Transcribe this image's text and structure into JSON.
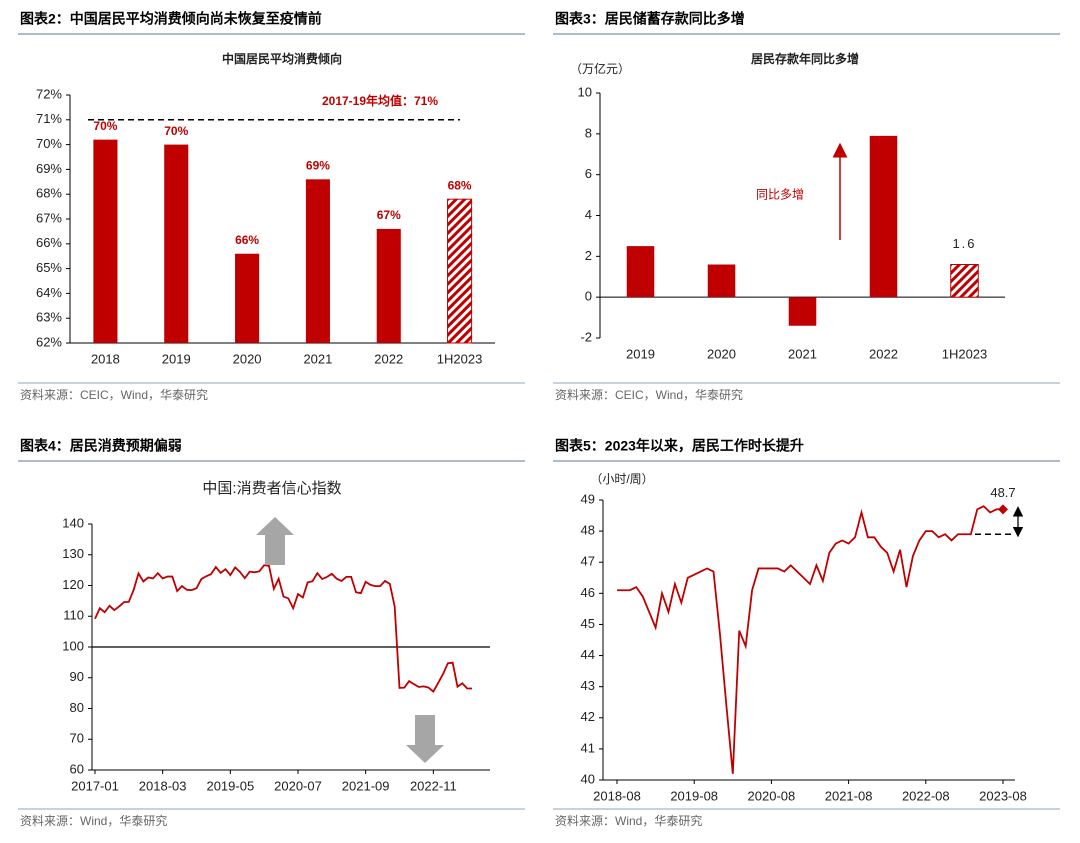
{
  "chart_data": [
    {
      "type": "bar",
      "figure_title": "图表2：中国居民平均消费倾向尚未恢复至疫情前",
      "title": "中国居民平均消费倾向",
      "source": "资料来源：CEIC，Wind，华泰研究",
      "categories": [
        "2018",
        "2019",
        "2020",
        "2021",
        "2022",
        "1H2023"
      ],
      "values": [
        70.2,
        70.0,
        65.6,
        68.6,
        66.6,
        67.8
      ],
      "value_labels": [
        "70%",
        "70%",
        "66%",
        "69%",
        "67%",
        "68%"
      ],
      "hatched": [
        false,
        false,
        false,
        false,
        false,
        true
      ],
      "color": "#c00000",
      "ylim": [
        62,
        72
      ],
      "yticks": [
        {
          "value": 62,
          "label": "62%"
        },
        {
          "value": 63,
          "label": "63%"
        },
        {
          "value": 64,
          "label": "64%"
        },
        {
          "value": 65,
          "label": "65%"
        },
        {
          "value": 66,
          "label": "66%"
        },
        {
          "value": 67,
          "label": "67%"
        },
        {
          "value": 68,
          "label": "68%"
        },
        {
          "value": 69,
          "label": "69%"
        },
        {
          "value": 70,
          "label": "70%"
        },
        {
          "value": 71,
          "label": "71%"
        },
        {
          "value": 72,
          "label": "72%"
        }
      ],
      "reference_line": {
        "value": 71,
        "label": "2017-19年均值：71%"
      },
      "grid": false
    },
    {
      "type": "bar",
      "figure_title": "图表3：居民储蓄存款同比多增",
      "title": "居民存款年同比多增",
      "ylabel": "（万亿元）",
      "source": "资料来源：CEIC，Wind，华泰研究",
      "categories": [
        "2019",
        "2020",
        "2021",
        "2022",
        "1H2023"
      ],
      "values": [
        2.5,
        1.6,
        -1.4,
        7.9,
        1.6
      ],
      "hatched": [
        false,
        false,
        false,
        false,
        true
      ],
      "label_last": true,
      "annotation": "同比多增",
      "color": "#c00000",
      "ylim": [
        -2,
        10
      ],
      "yticks": [
        -2,
        0,
        2,
        4,
        6,
        8,
        10
      ],
      "grid": false
    },
    {
      "type": "line",
      "figure_title": "图表4：居民消费预期偏弱",
      "title": "中国:消费者信心指数",
      "source": "资料来源：Wind，华泰研究",
      "x": [
        "2017-01",
        "2017-02",
        "2017-03",
        "2017-04",
        "2017-05",
        "2017-06",
        "2017-07",
        "2017-08",
        "2017-09",
        "2017-10",
        "2017-11",
        "2017-12",
        "2018-01",
        "2018-02",
        "2018-03",
        "2018-04",
        "2018-05",
        "2018-06",
        "2018-07",
        "2018-08",
        "2018-09",
        "2018-10",
        "2018-11",
        "2018-12",
        "2019-01",
        "2019-02",
        "2019-03",
        "2019-04",
        "2019-05",
        "2019-06",
        "2019-07",
        "2019-08",
        "2019-09",
        "2019-10",
        "2019-11",
        "2019-12",
        "2020-01",
        "2020-02",
        "2020-03",
        "2020-04",
        "2020-05",
        "2020-06",
        "2020-07",
        "2020-08",
        "2020-09",
        "2020-10",
        "2020-11",
        "2020-12",
        "2021-01",
        "2021-02",
        "2021-03",
        "2021-04",
        "2021-05",
        "2021-06",
        "2021-07",
        "2021-08",
        "2021-09",
        "2021-10",
        "2021-11",
        "2021-12",
        "2022-01",
        "2022-02",
        "2022-03",
        "2022-04",
        "2022-05",
        "2022-06",
        "2022-07",
        "2022-08",
        "2022-09",
        "2022-10",
        "2022-11",
        "2022-12",
        "2023-01",
        "2023-02",
        "2023-03",
        "2023-04",
        "2023-05",
        "2023-06",
        "2023-07"
      ],
      "values": [
        109.2,
        112.6,
        111.3,
        113.4,
        112.0,
        113.2,
        114.6,
        114.7,
        118.6,
        123.9,
        121.3,
        122.6,
        122.3,
        124.0,
        122.3,
        122.9,
        122.9,
        118.2,
        119.8,
        118.6,
        118.5,
        119.1,
        122.1,
        123.0,
        123.7,
        126.0,
        124.1,
        125.3,
        123.4,
        125.9,
        124.4,
        122.4,
        124.5,
        124.3,
        124.6,
        126.6,
        126.4,
        118.9,
        122.2,
        116.4,
        115.8,
        112.6,
        117.2,
        116.1,
        121.0,
        121.4,
        124.0,
        122.1,
        122.8,
        123.8,
        122.2,
        121.5,
        122.8,
        122.8,
        117.8,
        117.5,
        121.2,
        120.2,
        119.8,
        119.8,
        121.5,
        120.5,
        113.2,
        86.7,
        86.8,
        88.9,
        87.9,
        87.0,
        87.2,
        86.8,
        85.5,
        88.3,
        91.2,
        94.7,
        94.9,
        87.1,
        88.2,
        86.5,
        86.5
      ],
      "color": "#c00000",
      "xticks": [
        "2017-01",
        "2018-03",
        "2019-05",
        "2020-07",
        "2021-09",
        "2022-11"
      ],
      "ylim": [
        60,
        140
      ],
      "yticks": [
        60,
        70,
        80,
        90,
        100,
        110,
        120,
        130,
        140
      ],
      "reference_line": 100,
      "grid": false
    },
    {
      "type": "line",
      "figure_title": "图表5：2023年以来，居民工作时长提升",
      "ylabel": "（小时/周）",
      "source": "资料来源：Wind，华泰研究",
      "x": [
        "2018-08",
        "2018-09",
        "2018-10",
        "2018-11",
        "2018-12",
        "2019-01",
        "2019-02",
        "2019-03",
        "2019-04",
        "2019-05",
        "2019-06",
        "2019-07",
        "2019-08",
        "2019-09",
        "2019-10",
        "2019-11",
        "2019-12",
        "2020-01",
        "2020-02",
        "2020-03",
        "2020-04",
        "2020-05",
        "2020-06",
        "2020-07",
        "2020-08",
        "2020-09",
        "2020-10",
        "2020-11",
        "2020-12",
        "2021-01",
        "2021-02",
        "2021-03",
        "2021-04",
        "2021-05",
        "2021-06",
        "2021-07",
        "2021-08",
        "2021-09",
        "2021-10",
        "2021-11",
        "2021-12",
        "2022-01",
        "2022-02",
        "2022-03",
        "2022-04",
        "2022-05",
        "2022-06",
        "2022-07",
        "2022-08",
        "2022-09",
        "2022-10",
        "2022-11",
        "2022-12",
        "2023-01",
        "2023-02",
        "2023-03",
        "2023-04",
        "2023-05",
        "2023-06",
        "2023-07",
        "2023-08"
      ],
      "values": [
        46.1,
        46.1,
        46.1,
        46.2,
        45.9,
        45.4,
        44.9,
        46.0,
        45.4,
        46.3,
        45.7,
        46.5,
        46.6,
        46.7,
        46.8,
        46.7,
        44.7,
        42.4,
        40.2,
        44.8,
        44.3,
        46.1,
        46.8,
        46.8,
        46.8,
        46.8,
        46.7,
        46.9,
        46.7,
        46.5,
        46.3,
        46.9,
        46.4,
        47.3,
        47.6,
        47.7,
        47.6,
        47.8,
        48.6,
        47.8,
        47.8,
        47.5,
        47.3,
        46.7,
        47.4,
        46.2,
        47.2,
        47.7,
        48.0,
        48.0,
        47.8,
        47.9,
        47.7,
        47.9,
        47.9,
        47.9,
        48.7,
        48.8,
        48.6,
        48.7,
        48.7
      ],
      "color": "#c00000",
      "label_last": true,
      "xticks": [
        "2018-08",
        "2019-08",
        "2020-08",
        "2021-08",
        "2022-08",
        "2023-08"
      ],
      "ylim": [
        40,
        49
      ],
      "yticks": [
        40,
        41,
        42,
        43,
        44,
        45,
        46,
        47,
        48,
        49
      ],
      "reference_line": 47.9,
      "grid": false
    }
  ]
}
